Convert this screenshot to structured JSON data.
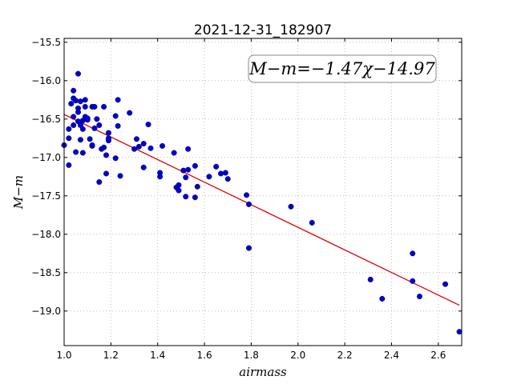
{
  "chart_data": {
    "type": "scatter",
    "title": "2021-12-31_182907",
    "xlabel": "airmass",
    "ylabel": "M−m",
    "xlim": [
      1.0,
      2.7
    ],
    "ylim": [
      -19.45,
      -15.45
    ],
    "y_inverted": true,
    "grid": true,
    "xticks": [
      "1.0",
      "1.2",
      "1.4",
      "1.6",
      "1.8",
      "2.0",
      "2.2",
      "2.4",
      "2.6"
    ],
    "xtick_values": [
      1.0,
      1.2,
      1.4,
      1.6,
      1.8,
      2.0,
      2.2,
      2.4,
      2.6
    ],
    "yticks": [
      "−15.5",
      "−16.0",
      "−16.5",
      "−17.0",
      "−17.5",
      "−18.0",
      "−18.5",
      "−19.0"
    ],
    "ytick_values": [
      -15.5,
      -16.0,
      -16.5,
      -17.0,
      -17.5,
      -18.0,
      -18.5,
      -19.0
    ],
    "annotation": "M−m=−1.47χ−14.97",
    "fit": {
      "slope": -1.47,
      "intercept": -14.97,
      "x_range": [
        1.0,
        2.69
      ],
      "color": "#dd0000"
    },
    "point_color": "#0000cc",
    "points": [
      [
        1.0,
        -16.84
      ],
      [
        1.02,
        -16.75
      ],
      [
        1.02,
        -17.1
      ],
      [
        1.02,
        -16.63
      ],
      [
        1.03,
        -16.3
      ],
      [
        1.04,
        -16.23
      ],
      [
        1.04,
        -16.13
      ],
      [
        1.04,
        -16.47
      ],
      [
        1.04,
        -16.58
      ],
      [
        1.05,
        -16.93
      ],
      [
        1.05,
        -16.26
      ],
      [
        1.06,
        -16.53
      ],
      [
        1.06,
        -16.36
      ],
      [
        1.06,
        -16.41
      ],
      [
        1.06,
        -15.91
      ],
      [
        1.07,
        -16.58
      ],
      [
        1.07,
        -16.77
      ],
      [
        1.07,
        -16.27
      ],
      [
        1.08,
        -16.63
      ],
      [
        1.08,
        -16.94
      ],
      [
        1.08,
        -16.52
      ],
      [
        1.09,
        -16.34
      ],
      [
        1.09,
        -16.47
      ],
      [
        1.09,
        -16.25
      ],
      [
        1.1,
        -16.49
      ],
      [
        1.1,
        -16.51
      ],
      [
        1.11,
        -16.76
      ],
      [
        1.12,
        -16.34
      ],
      [
        1.12,
        -16.85
      ],
      [
        1.12,
        -16.84
      ],
      [
        1.13,
        -16.34
      ],
      [
        1.13,
        -16.62
      ],
      [
        1.14,
        -16.5
      ],
      [
        1.15,
        -16.58
      ],
      [
        1.15,
        -17.32
      ],
      [
        1.16,
        -16.89
      ],
      [
        1.17,
        -16.87
      ],
      [
        1.17,
        -16.34
      ],
      [
        1.18,
        -17.21
      ],
      [
        1.18,
        -16.97
      ],
      [
        1.19,
        -16.68
      ],
      [
        1.19,
        -16.75
      ],
      [
        1.19,
        -16.78
      ],
      [
        1.22,
        -17.01
      ],
      [
        1.22,
        -16.46
      ],
      [
        1.23,
        -16.25
      ],
      [
        1.23,
        -16.59
      ],
      [
        1.24,
        -17.24
      ],
      [
        1.28,
        -16.42
      ],
      [
        1.3,
        -16.89
      ],
      [
        1.31,
        -16.76
      ],
      [
        1.32,
        -16.86
      ],
      [
        1.34,
        -17.13
      ],
      [
        1.34,
        -16.82
      ],
      [
        1.36,
        -16.57
      ],
      [
        1.37,
        -16.88
      ],
      [
        1.41,
        -17.25
      ],
      [
        1.41,
        -17.2
      ],
      [
        1.42,
        -16.85
      ],
      [
        1.47,
        -16.94
      ],
      [
        1.48,
        -17.39
      ],
      [
        1.49,
        -17.43
      ],
      [
        1.49,
        -17.36
      ],
      [
        1.51,
        -17.17
      ],
      [
        1.52,
        -17.26
      ],
      [
        1.52,
        -17.51
      ],
      [
        1.53,
        -17.16
      ],
      [
        1.53,
        -16.89
      ],
      [
        1.56,
        -17.52
      ],
      [
        1.56,
        -17.11
      ],
      [
        1.57,
        -17.38
      ],
      [
        1.62,
        -17.25
      ],
      [
        1.65,
        -17.12
      ],
      [
        1.67,
        -17.21
      ],
      [
        1.69,
        -17.2
      ],
      [
        1.7,
        -17.28
      ],
      [
        1.78,
        -17.49
      ],
      [
        1.79,
        -17.61
      ],
      [
        1.79,
        -18.18
      ],
      [
        1.97,
        -17.64
      ],
      [
        2.06,
        -17.85
      ],
      [
        2.31,
        -18.59
      ],
      [
        2.36,
        -18.84
      ],
      [
        2.49,
        -18.25
      ],
      [
        2.49,
        -18.61
      ],
      [
        2.52,
        -18.81
      ],
      [
        2.63,
        -18.65
      ],
      [
        2.69,
        -19.27
      ]
    ]
  }
}
